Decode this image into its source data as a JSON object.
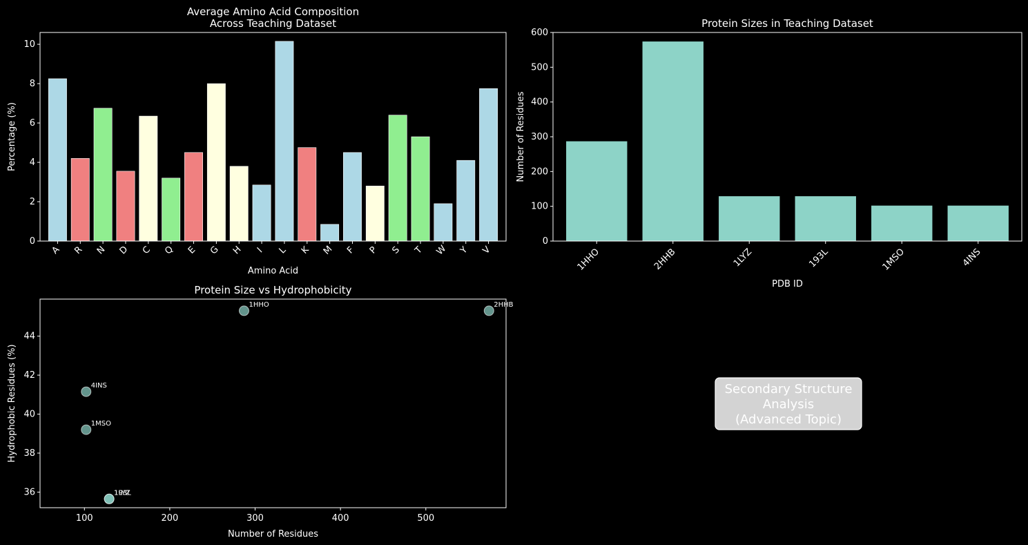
{
  "chart_data": [
    {
      "type": "bar",
      "title": "Average Amino Acid Composition\nAcross Teaching Dataset",
      "xlabel": "Amino Acid",
      "ylabel": "Percentage (%)",
      "ylim": [
        0,
        10.6
      ],
      "yticks": [
        0,
        2,
        4,
        6,
        8,
        10
      ],
      "grid": false,
      "categories": [
        "A",
        "R",
        "N",
        "D",
        "C",
        "Q",
        "E",
        "G",
        "H",
        "I",
        "L",
        "K",
        "M",
        "F",
        "P",
        "S",
        "T",
        "W",
        "Y",
        "V"
      ],
      "values": [
        8.25,
        4.2,
        6.75,
        3.55,
        6.35,
        3.2,
        4.5,
        8.0,
        3.8,
        2.85,
        10.15,
        4.75,
        0.85,
        4.5,
        2.8,
        6.4,
        5.3,
        1.9,
        4.1,
        7.75
      ],
      "colors": [
        "#add8e6",
        "#f08080",
        "#90ee90",
        "#f08080",
        "#ffffe0",
        "#90ee90",
        "#f08080",
        "#ffffe0",
        "#ffffe0",
        "#add8e6",
        "#add8e6",
        "#f08080",
        "#add8e6",
        "#add8e6",
        "#ffffe0",
        "#90ee90",
        "#90ee90",
        "#add8e6",
        "#add8e6",
        "#add8e6"
      ]
    },
    {
      "type": "bar",
      "title": "Protein Sizes in Teaching Dataset",
      "xlabel": "PDB ID",
      "ylabel": "Number of Residues",
      "ylim": [
        0,
        600
      ],
      "yticks": [
        0,
        100,
        200,
        300,
        400,
        500,
        600
      ],
      "grid": false,
      "categories": [
        "1HHO",
        "2HHB",
        "1LYZ",
        "193L",
        "1MSO",
        "4INS"
      ],
      "values": [
        287,
        574,
        129,
        129,
        102,
        102
      ],
      "color": "#8dd3c7"
    },
    {
      "type": "scatter",
      "title": "Protein Size vs Hydrophobicity",
      "xlabel": "Number of Residues",
      "ylabel": "Hydrophobic Residues (%)",
      "xlim": [
        48,
        594
      ],
      "ylim": [
        35.2,
        45.9
      ],
      "xticks": [
        100,
        200,
        300,
        400,
        500
      ],
      "yticks": [
        36,
        38,
        40,
        42,
        44
      ],
      "grid": false,
      "color": "#8dd3c7",
      "points": [
        {
          "label": "1HHO",
          "x": 287,
          "y": 45.3
        },
        {
          "label": "2HHB",
          "x": 574,
          "y": 45.3
        },
        {
          "label": "4INS",
          "x": 102,
          "y": 41.15
        },
        {
          "label": "1MSO",
          "x": 102,
          "y": 39.2
        },
        {
          "label": "1LYZ",
          "x": 129,
          "y": 35.65
        },
        {
          "label": "193L",
          "x": 129,
          "y": 35.65
        }
      ]
    }
  ],
  "placeholder_panel": {
    "text": "Secondary Structure\nAnalysis\n(Advanced Topic)",
    "box_color": "#d3d3d3"
  }
}
